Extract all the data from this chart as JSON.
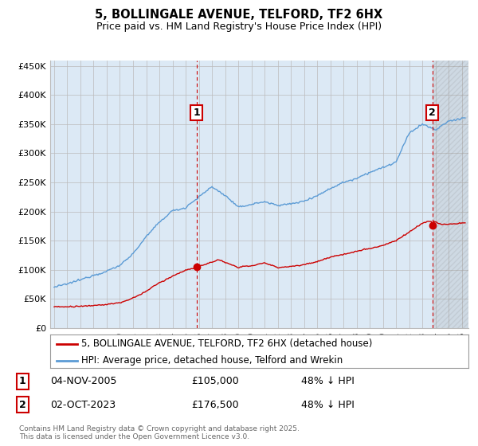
{
  "title": "5, BOLLINGALE AVENUE, TELFORD, TF2 6HX",
  "subtitle": "Price paid vs. HM Land Registry's House Price Index (HPI)",
  "sale1_date": "04-NOV-2005",
  "sale1_price": 105000,
  "sale1_label": "48% ↓ HPI",
  "sale2_date": "02-OCT-2023",
  "sale2_price": 176500,
  "sale2_label": "48% ↓ HPI",
  "legend_line1": "5, BOLLINGALE AVENUE, TELFORD, TF2 6HX (detached house)",
  "legend_line2": "HPI: Average price, detached house, Telford and Wrekin",
  "footnote": "Contains HM Land Registry data © Crown copyright and database right 2025.\nThis data is licensed under the Open Government Licence v3.0.",
  "hpi_color": "#5b9bd5",
  "price_color": "#cc0000",
  "vline_color": "#cc0000",
  "grid_color": "#bbbbbb",
  "plot_bg_color": "#dce9f5",
  "background_color": "#ffffff",
  "ylim": [
    0,
    460000
  ],
  "yticks": [
    0,
    50000,
    100000,
    150000,
    200000,
    250000,
    300000,
    350000,
    400000,
    450000
  ],
  "xlim_start": 1994.7,
  "xlim_end": 2026.5,
  "sale1_x": 2005.833,
  "sale2_x": 2023.75
}
